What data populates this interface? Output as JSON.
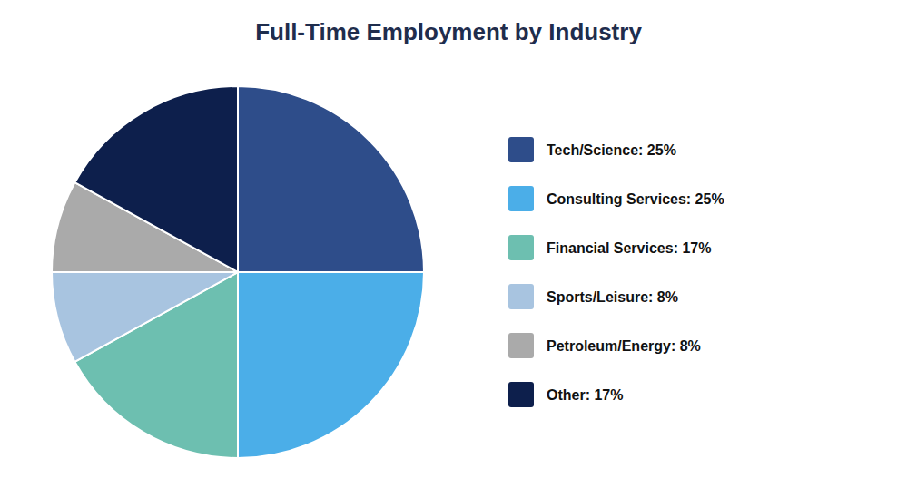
{
  "chart_data": {
    "type": "pie",
    "title": "Full-Time Employment by Industry",
    "categories": [
      "Tech/Science: 25%",
      "Consulting Services: 25%",
      "Financial Services: 17%",
      "Sports/Leisure: 8%",
      "Petroleum/Energy: 8%",
      "Other: 17%"
    ],
    "values": [
      25,
      25,
      17,
      8,
      8,
      17
    ],
    "colors": [
      "#2e4d8a",
      "#4baee8",
      "#6dbfb0",
      "#a8c4e0",
      "#aaaaaa",
      "#0d1f4c"
    ],
    "legend": "right"
  }
}
